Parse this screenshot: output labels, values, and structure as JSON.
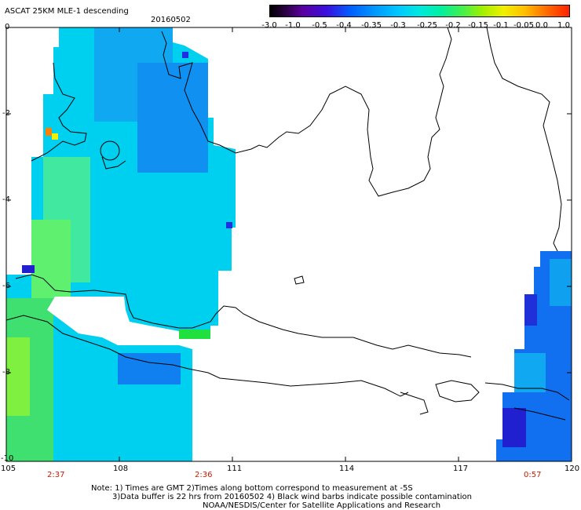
{
  "header": {
    "title": "ASCAT 25KM MLE-1 descending",
    "date": "20160502"
  },
  "colorbar": {
    "ticks": [
      "-3.0",
      "-1.0",
      "-0.5",
      "-0.4",
      "-0.35",
      "-0.3",
      "-0.25",
      "-0.2",
      "-0.15",
      "-0.1",
      "-0.05",
      "0.0",
      "1.0"
    ]
  },
  "axes": {
    "x_ticks": [
      "105",
      "108",
      "111",
      "114",
      "117",
      "120"
    ],
    "y_ticks": [
      "0",
      "-2",
      "-4",
      "-6",
      "-8",
      "-10"
    ]
  },
  "times": {
    "t1": "2:37",
    "t2": "2:36",
    "t3": "0:57"
  },
  "notes": {
    "line1": "Note: 1) Times are GMT 2)Times along bottom correspond to measurement at -5S",
    "line2": "3)Data buffer is 22 hrs from 20160502 4) Black wind barbs indicate possible contamination",
    "line3": "NOAA/NESDIS/Center for Satellite Applications and Research"
  },
  "colors": {
    "swath_cyan": "#00d8f0",
    "swath_green": "#30e878",
    "swath_blue": "#1070f0",
    "coast": "#000000"
  }
}
